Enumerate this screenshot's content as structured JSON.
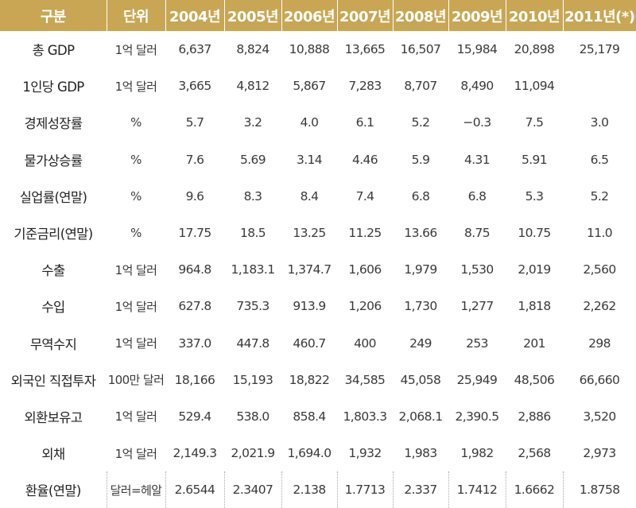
{
  "table": {
    "headers": [
      "구분",
      "단위",
      "2004년",
      "2005년",
      "2006년",
      "2007년",
      "2008년",
      "2009년",
      "2010년",
      "2011년(*)"
    ],
    "rows": [
      [
        "총 GDP",
        "1억 달러",
        "6,637",
        "8,824",
        "10,888",
        "13,665",
        "16,507",
        "15,984",
        "20,898",
        "25,179"
      ],
      [
        "1인당 GDP",
        "1억 달러",
        "3,665",
        "4,812",
        "5,867",
        "7,283",
        "8,707",
        "8,490",
        "11,094",
        ""
      ],
      [
        "경제성장률",
        "%",
        "5.7",
        "3.2",
        "4.0",
        "6.1",
        "5.2",
        "−0.3",
        "7.5",
        "3.0"
      ],
      [
        "물가상승률",
        "%",
        "7.6",
        "5.69",
        "3.14",
        "4.46",
        "5.9",
        "4.31",
        "5.91",
        "6.5"
      ],
      [
        "실업률(연말)",
        "%",
        "9.6",
        "8.3",
        "8.4",
        "7.4",
        "6.8",
        "6.8",
        "5.3",
        "5.2"
      ],
      [
        "기준금리(연말)",
        "%",
        "17.75",
        "18.5",
        "13.25",
        "11.25",
        "13.66",
        "8.75",
        "10.75",
        "11.0"
      ],
      [
        "수출",
        "1억 달러",
        "964.8",
        "1,183.1",
        "1,374.7",
        "1,606",
        "1,979",
        "1,530",
        "2,019",
        "2,560"
      ],
      [
        "수입",
        "1억 달러",
        "627.8",
        "735.3",
        "913.9",
        "1,206",
        "1,730",
        "1,277",
        "1,818",
        "2,262"
      ],
      [
        "무역수지",
        "1억 달러",
        "337.0",
        "447.8",
        "460.7",
        "400",
        "249",
        "253",
        "201",
        "298"
      ],
      [
        "외국인 직접투자",
        "100만 달러",
        "18,166",
        "15,193",
        "18,822",
        "34,585",
        "45,058",
        "25,949",
        "48,506",
        "66,660"
      ],
      [
        "외환보유고",
        "1억 달러",
        "529.4",
        "538.0",
        "858.4",
        "1,803.3",
        "2,068.1",
        "2,390.5",
        "2,886",
        "3,520"
      ],
      [
        "외채",
        "1억 달러",
        "2,149.3",
        "2,021.9",
        "1,694.0",
        "1,932",
        "1,983",
        "1,982",
        "2,568",
        "2,973"
      ],
      [
        "환율(연말)",
        "달러=헤알",
        "2.6544",
        "2.3407",
        "2.138",
        "1.7713",
        "2.337",
        "1.7412",
        "1.6662",
        "1.8758"
      ]
    ]
  },
  "colors": {
    "header_background": "#c8a653",
    "header_text": "#ffffff",
    "body_text": "#333333"
  }
}
